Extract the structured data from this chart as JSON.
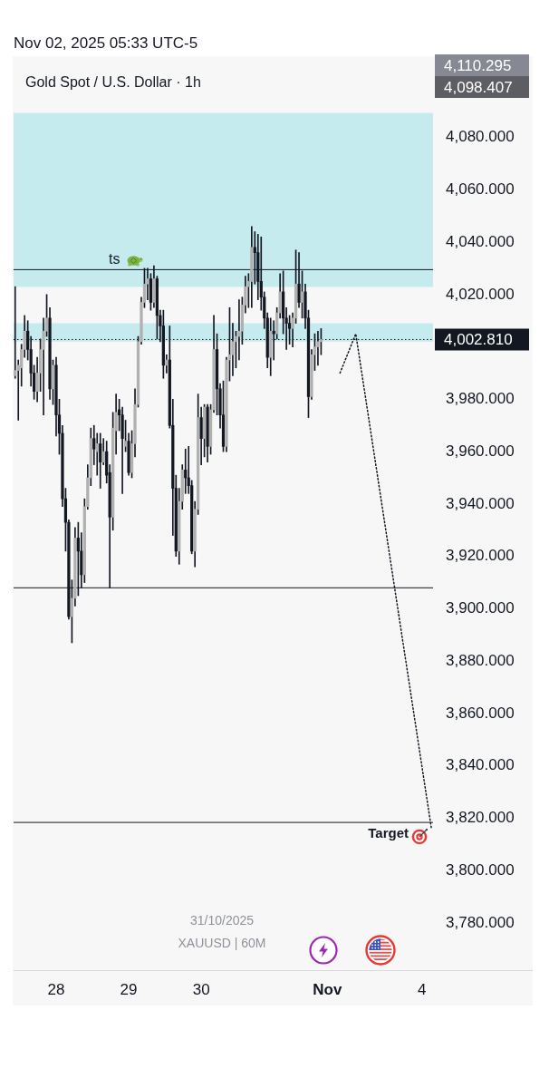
{
  "chart_data": {
    "type": "candlestick",
    "title": "Gold Spot / U.S. Dollar · 1h",
    "subtitle": "Nov 02, 2025 05:33 UTC-5",
    "categories": [
      null,
      null,
      null,
      null,
      null,
      null,
      null,
      null,
      null,
      null,
      null,
      null,
      null,
      "28",
      null,
      null,
      null,
      null,
      null,
      null,
      null,
      null,
      null,
      null,
      null,
      null,
      null,
      null,
      null,
      null,
      null,
      null,
      null,
      null,
      null,
      null,
      "29",
      null,
      null,
      null,
      null,
      null,
      null,
      null,
      null,
      null,
      null,
      null,
      null,
      null,
      null,
      null,
      null,
      null,
      null,
      null,
      null,
      null,
      null,
      "30",
      null,
      null,
      null,
      null,
      null,
      null,
      null,
      null,
      null,
      null,
      null,
      null,
      null,
      null,
      null,
      null,
      null,
      null,
      null,
      null,
      null,
      null,
      null,
      null,
      null,
      null,
      null,
      null,
      null,
      null,
      null,
      null,
      null,
      null,
      null,
      null,
      null,
      null,
      null,
      "Nov",
      null,
      null,
      null,
      null,
      null,
      null,
      null,
      null,
      null,
      null,
      null,
      null,
      null,
      null,
      null,
      null,
      null,
      null,
      null,
      null,
      null,
      null,
      null,
      null,
      null,
      null,
      null,
      null,
      null,
      "4",
      null,
      null,
      null
    ],
    "ohlc": [
      [
        3989,
        4023,
        3988,
        3991
      ],
      [
        3991,
        3995,
        3972,
        3993
      ],
      [
        3992,
        4001,
        3985,
        3999
      ],
      [
        3999,
        4012,
        3996,
        4006
      ],
      [
        4006,
        4010,
        3995,
        3999
      ],
      [
        3999,
        4004,
        3985,
        3990
      ],
      [
        3990,
        3993,
        3980,
        3983
      ],
      [
        3983,
        3996,
        3979,
        3990
      ],
      [
        3990,
        4003,
        3983,
        3999
      ],
      [
        3999,
        4011,
        3974,
        4006
      ],
      [
        4006,
        4020,
        4004,
        4011
      ],
      [
        4011,
        4015,
        3980,
        3984
      ],
      [
        3984,
        3995,
        3978,
        3993
      ],
      [
        3993,
        3996,
        3966,
        3974
      ],
      [
        3974,
        3980,
        3959,
        3967
      ],
      [
        3967,
        3970,
        3939,
        3942
      ],
      [
        3942,
        3946,
        3922,
        3933
      ],
      [
        3933,
        3934,
        3896,
        3897
      ],
      [
        3897,
        3911,
        3887,
        3904
      ],
      [
        3904,
        3931,
        3901,
        3927
      ],
      [
        3927,
        3933,
        3905,
        3922
      ],
      [
        3922,
        3929,
        3908,
        3913
      ],
      [
        3913,
        3942,
        3910,
        3939
      ],
      [
        3939,
        3955,
        3938,
        3950
      ],
      [
        3950,
        3969,
        3947,
        3965
      ],
      [
        3965,
        3970,
        3955,
        3961
      ],
      [
        3960,
        3967,
        3951,
        3963
      ],
      [
        3963,
        3967,
        3946,
        3956
      ],
      [
        3956,
        3965,
        3955,
        3960
      ],
      [
        3960,
        3964,
        3948,
        3951
      ],
      [
        3952,
        3955,
        3908,
        3935
      ],
      [
        3935,
        3975,
        3930,
        3969
      ],
      [
        3968,
        3982,
        3959,
        3975
      ],
      [
        3976,
        3980,
        3968,
        3974
      ],
      [
        3974,
        3977,
        3944,
        3965
      ],
      [
        3962,
        3972,
        3960,
        3964
      ],
      [
        3964,
        3967,
        3951,
        3952
      ],
      [
        3952,
        3968,
        3950,
        3963
      ],
      [
        3963,
        3984,
        3958,
        3978
      ],
      [
        3978,
        4004,
        3977,
        4002
      ],
      [
        4002,
        4019,
        4001,
        4017
      ],
      [
        4017,
        4030,
        4015,
        4024
      ],
      [
        4024,
        4030,
        4018,
        4026
      ],
      [
        4026,
        4028,
        4014,
        4017
      ],
      [
        4017,
        4031,
        4015,
        4026
      ],
      [
        4026,
        4027,
        4003,
        4012
      ],
      [
        4012,
        4014,
        4002,
        4008
      ],
      [
        4008,
        4014,
        3988,
        3993
      ],
      [
        3993,
        3997,
        3990,
        3995
      ],
      [
        3995,
        4008,
        3969,
        3970
      ],
      [
        3970,
        3980,
        3928,
        3946
      ],
      [
        3946,
        3951,
        3920,
        3922
      ],
      [
        3922,
        3946,
        3917,
        3941
      ],
      [
        3941,
        3955,
        3938,
        3953
      ],
      [
        3953,
        3961,
        3944,
        3950
      ],
      [
        3950,
        3962,
        3944,
        3947
      ],
      [
        3947,
        3949,
        3921,
        3922
      ],
      [
        3922,
        3941,
        3916,
        3938
      ],
      [
        3938,
        3982,
        3936,
        3973
      ],
      [
        3973,
        3977,
        3955,
        3965
      ],
      [
        3965,
        3978,
        3958,
        3977
      ],
      [
        3977,
        3978,
        3956,
        3962
      ],
      [
        3962,
        3978,
        3959,
        3976
      ],
      [
        3976,
        4012,
        3975,
        3999
      ],
      [
        3999,
        4005,
        3974,
        3984
      ],
      [
        3984,
        3986,
        3969,
        3974
      ],
      [
        3974,
        3987,
        3960,
        3962
      ],
      [
        3962,
        3996,
        3960,
        3995
      ],
      [
        3995,
        4015,
        3987,
        3997
      ],
      [
        3997,
        4009,
        3989,
        4002
      ],
      [
        4002,
        4006,
        3992,
        4004
      ],
      [
        4004,
        4018,
        3995,
        4006
      ],
      [
        4006,
        4019,
        4001,
        4016
      ],
      [
        4016,
        4027,
        4013,
        4023
      ],
      [
        4023,
        4028,
        4015,
        4025
      ],
      [
        4025,
        4046,
        4015,
        4038
      ],
      [
        4038,
        4044,
        4024,
        4036
      ],
      [
        4036,
        4043,
        4018,
        4025
      ],
      [
        4025,
        4042,
        4014,
        4019
      ],
      [
        4019,
        4021,
        4007,
        4011
      ],
      [
        4011,
        4013,
        3992,
        3996
      ],
      [
        3996,
        4011,
        3989,
        4006
      ],
      [
        4006,
        4010,
        3995,
        4005
      ],
      [
        4005,
        4015,
        4003,
        4013
      ],
      [
        4013,
        4028,
        4011,
        4021
      ],
      [
        4021,
        4029,
        4005,
        4011
      ],
      [
        4011,
        4015,
        3999,
        4009
      ],
      [
        4009,
        4012,
        4001,
        4007
      ],
      [
        4007,
        4013,
        4000,
        4011
      ],
      [
        4011,
        4037,
        4009,
        4024
      ],
      [
        4024,
        4036,
        4015,
        4017
      ],
      [
        4017,
        4029,
        4011,
        4021
      ],
      [
        4021,
        4024,
        4007,
        4011
      ],
      [
        4011,
        4014,
        3973,
        3981
      ],
      [
        3981,
        3999,
        3980,
        3997
      ],
      [
        3997,
        4005,
        3991,
        4000
      ],
      [
        4000,
        4006,
        3993,
        4002
      ],
      [
        4002,
        4007,
        3997,
        4002.81
      ],
      null,
      null,
      null,
      null,
      null,
      null,
      null,
      null,
      null,
      null,
      null,
      null,
      null,
      null,
      null,
      null,
      null,
      null,
      null,
      null,
      null,
      null,
      null,
      null,
      null,
      null,
      null,
      null,
      null,
      null,
      null,
      null,
      null,
      null,
      null
    ],
    "series": [
      {
        "type": "line",
        "color": "#131722",
        "line_style": "dotted",
        "values": [
          null,
          null,
          null,
          null,
          null,
          null,
          null,
          null,
          null,
          null,
          null,
          null,
          null,
          null,
          null,
          null,
          null,
          null,
          null,
          null,
          null,
          null,
          null,
          null,
          null,
          null,
          null,
          null,
          null,
          null,
          null,
          null,
          null,
          null,
          null,
          null,
          null,
          null,
          null,
          null,
          null,
          null,
          null,
          null,
          null,
          null,
          null,
          null,
          null,
          null,
          null,
          null,
          null,
          null,
          null,
          null,
          null,
          null,
          null,
          null,
          null,
          null,
          null,
          null,
          null,
          null,
          null,
          null,
          null,
          null,
          null,
          null,
          null,
          null,
          null,
          null,
          null,
          null,
          null,
          null,
          null,
          null,
          null,
          null,
          null,
          null,
          null,
          null,
          null,
          null,
          null,
          null,
          null,
          null,
          null,
          null,
          null,
          null,
          null,
          null,
          null,
          null,
          null,
          3990,
          null,
          null,
          null,
          null,
          4005,
          null,
          null,
          null,
          null,
          null,
          null,
          null,
          null,
          null,
          null,
          null,
          null,
          null,
          null,
          null,
          null,
          null,
          null,
          null,
          null,
          null,
          null,
          null,
          3816
        ]
      }
    ],
    "ylim": [
      3762,
      4111
    ],
    "yticks": [
      {
        "value": 3780,
        "label": "3,780.000"
      },
      {
        "value": 3800,
        "label": "3,800.000"
      },
      {
        "value": 3820,
        "label": "3,820.000"
      },
      {
        "value": 3840,
        "label": "3,840.000"
      },
      {
        "value": 3860,
        "label": "3,860.000"
      },
      {
        "value": 3880,
        "label": "3,880.000"
      },
      {
        "value": 3900,
        "label": "3,900.000"
      },
      {
        "value": 3920,
        "label": "3,920.000"
      },
      {
        "value": 3940,
        "label": "3,940.000"
      },
      {
        "value": 3960,
        "label": "3,960.000"
      },
      {
        "value": 3980,
        "label": "3,980.000"
      },
      {
        "value": 4020,
        "label": "4,020.000"
      },
      {
        "value": 4040,
        "label": "4,040.000"
      },
      {
        "value": 4060,
        "label": "4,060.000"
      },
      {
        "value": 4080,
        "label": "4,080.000"
      }
    ],
    "ref_lines": [
      {
        "axis": "y",
        "value": 4029.5,
        "label": "ts",
        "color": "#131722"
      },
      {
        "axis": "y",
        "value": 3908,
        "color": "#131722"
      },
      {
        "axis": "y",
        "value": 3818.4,
        "label": "Target",
        "color": "#131722"
      },
      {
        "axis": "y",
        "value": 4002.81,
        "label": "4,002.810",
        "color": "#131722",
        "line_style": "dotted"
      }
    ],
    "bands": [
      {
        "axis": "y",
        "from": 4022.9,
        "to": 4089.4,
        "color": "#c6ebef"
      },
      {
        "axis": "y",
        "from": 4002,
        "to": 4009,
        "color": "#c6ebef"
      }
    ],
    "annotations": [
      "31/10/2025",
      "XAUUSD | 60M",
      "4,110.295",
      "4,098.407"
    ]
  }
}
